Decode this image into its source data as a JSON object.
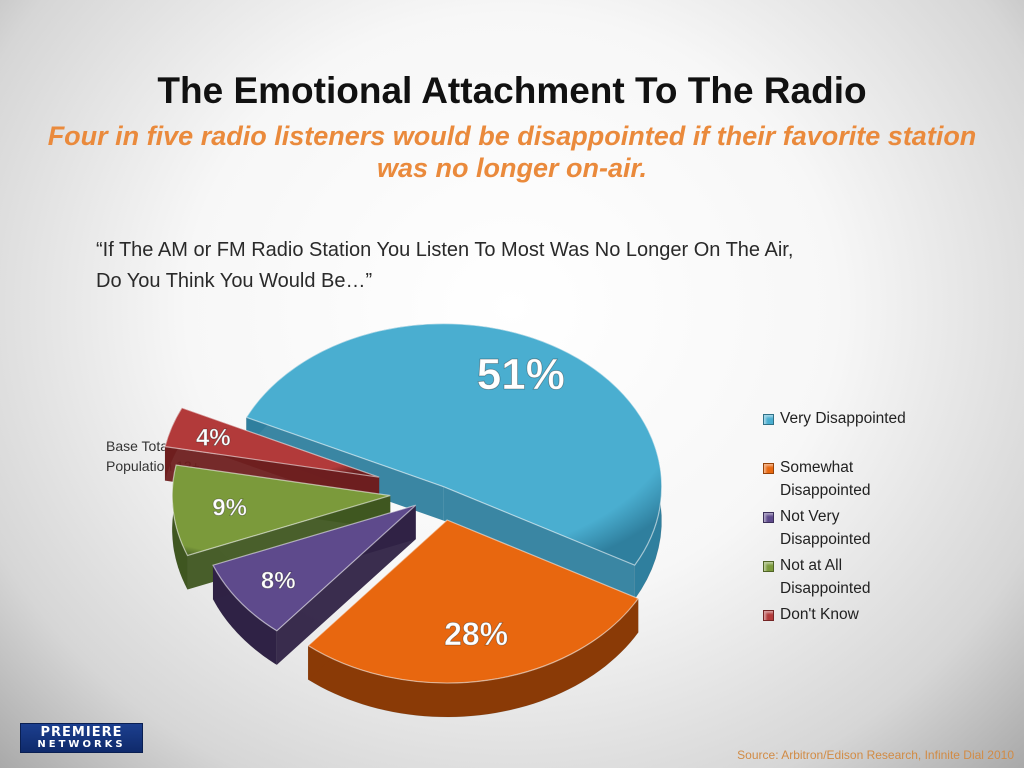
{
  "slide": {
    "title": "The Emotional Attachment To The Radio",
    "subtitle": "Four in five radio listeners would be disappointed if their favorite station was no longer on-air.",
    "question_line1": "“If The AM or FM Radio Station You Listen To Most Was No Longer On The Air,",
    "question_line2": "Do You Think You Would Be…”",
    "base_note": "Base Total Population 12+",
    "source": "Source: Arbitron/Edison Research,  Infinite Dial 2010",
    "logo_top": "PREMIERE",
    "logo_bottom": "NETWORKS"
  },
  "chart_data": {
    "type": "pie",
    "title": "",
    "legend_position": "right",
    "slices": [
      {
        "label": "Very Disappointed",
        "value": 51,
        "display": "51%",
        "color": "#4aaed0",
        "side": "#2f7f9e",
        "label_color": "#ffffff"
      },
      {
        "label": "Somewhat Disappointed",
        "value": 28,
        "display": "28%",
        "color": "#e8670f",
        "side": "#8a3a06",
        "label_color": "#ffffff"
      },
      {
        "label": "Not Very Disappointed",
        "value": 8,
        "display": "8%",
        "color": "#5e4a8c",
        "side": "#2f2245",
        "label_color": "#ffffff"
      },
      {
        "label": "Not at All Disappointed",
        "value": 9,
        "display": "9%",
        "color": "#7b9a3b",
        "side": "#3f5620",
        "label_color": "#ffffff"
      },
      {
        "label": "Don't Know",
        "value": 4,
        "display": "4%",
        "color": "#b23a3a",
        "side": "#6e1f1f",
        "label_color": "#ffffff"
      }
    ]
  }
}
